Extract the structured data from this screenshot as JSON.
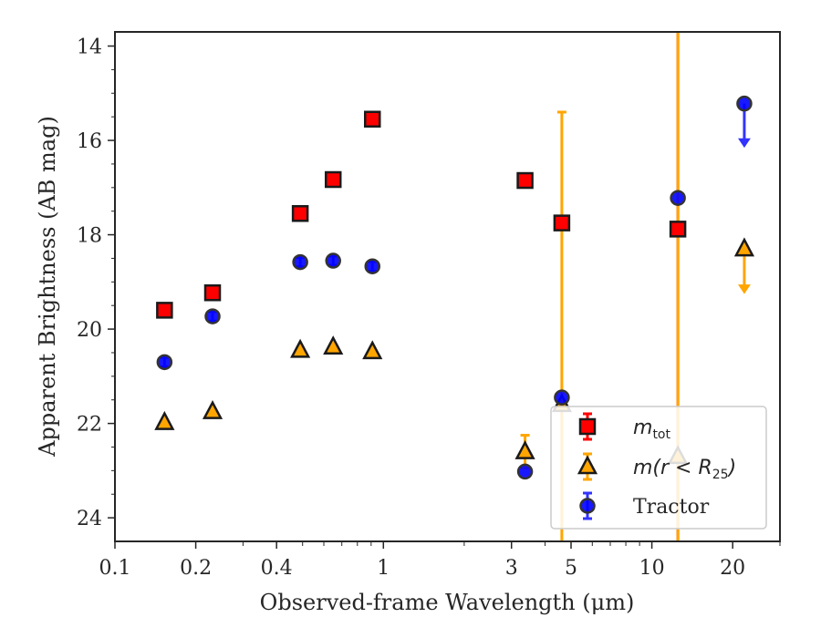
{
  "chart_data": {
    "type": "scatter",
    "xscale": "log",
    "xlim": [
      0.1,
      30
    ],
    "ylim": [
      24.5,
      13.7
    ],
    "yaxis_inverted": true,
    "xlabel": "Observed-frame Wavelength (μm)",
    "ylabel": "Apparent Brightness (AB mag)",
    "xticks": [
      0.1,
      0.2,
      0.4,
      1,
      3,
      5,
      10,
      20
    ],
    "xtick_labels": [
      "0.1",
      "0.2",
      "0.4",
      "1",
      "3",
      "5",
      "10",
      "20"
    ],
    "yticks": [
      14,
      16,
      18,
      20,
      22,
      24
    ],
    "ytick_labels": [
      "14",
      "16",
      "18",
      "20",
      "22",
      "24"
    ],
    "grid": false,
    "legend_position": "lower-right",
    "series": [
      {
        "name": "m_tot",
        "label_base": "m",
        "label_sub": "tot",
        "marker": "square",
        "color": "#ff0000",
        "edge_color": "#1a1a1a",
        "errorbar_color": "#ff0000",
        "points": [
          {
            "x": 0.153,
            "y": 19.6,
            "err": 0
          },
          {
            "x": 0.231,
            "y": 19.23,
            "err": 0
          },
          {
            "x": 0.49,
            "y": 17.55,
            "err": 0
          },
          {
            "x": 0.65,
            "y": 16.83,
            "err": 0
          },
          {
            "x": 0.91,
            "y": 15.55,
            "err": 0
          },
          {
            "x": 3.37,
            "y": 16.85,
            "err": 0
          },
          {
            "x": 4.62,
            "y": 17.75,
            "err": 0
          },
          {
            "x": 12.5,
            "y": 17.88,
            "err": 12
          }
        ]
      },
      {
        "name": "m(r < R25)",
        "label_base": "m(r < R",
        "label_sub": "25",
        "marker": "triangle",
        "color": "#ffa500",
        "edge_color": "#1a1a1a",
        "errorbar_color": "#ffa500",
        "points": [
          {
            "x": 0.153,
            "y": 21.98,
            "err": 0
          },
          {
            "x": 0.231,
            "y": 21.75,
            "err": 0
          },
          {
            "x": 0.49,
            "y": 20.45,
            "err": 0
          },
          {
            "x": 0.65,
            "y": 20.38,
            "err": 0
          },
          {
            "x": 0.91,
            "y": 20.48,
            "err": 0
          },
          {
            "x": 3.37,
            "y": 22.6,
            "err": 0.35
          },
          {
            "x": 4.62,
            "y": 21.6,
            "err": 6.2
          },
          {
            "x": 12.5,
            "y": 22.7,
            "err": 12
          }
        ],
        "upper_limits": [
          {
            "x": 22.1,
            "y": 18.3,
            "arrow_to": 19.2
          }
        ]
      },
      {
        "name": "Tractor",
        "marker": "circle",
        "color": "#0000ff",
        "edge_color": "#333333",
        "errorbar_color": "#3333ff",
        "points": [
          {
            "x": 0.153,
            "y": 20.7,
            "err": 0.1
          },
          {
            "x": 0.231,
            "y": 19.73,
            "err": 0.1
          },
          {
            "x": 0.49,
            "y": 18.58,
            "err": 0.1
          },
          {
            "x": 0.65,
            "y": 18.55,
            "err": 0.1
          },
          {
            "x": 0.91,
            "y": 18.67,
            "err": 0.1
          },
          {
            "x": 3.37,
            "y": 23.02,
            "err": 0
          },
          {
            "x": 4.62,
            "y": 21.45,
            "err": 0
          },
          {
            "x": 12.5,
            "y": 17.22,
            "err": 0
          }
        ],
        "upper_limits": [
          {
            "x": 22.1,
            "y": 15.22,
            "arrow_to": 16.1
          }
        ]
      }
    ]
  }
}
